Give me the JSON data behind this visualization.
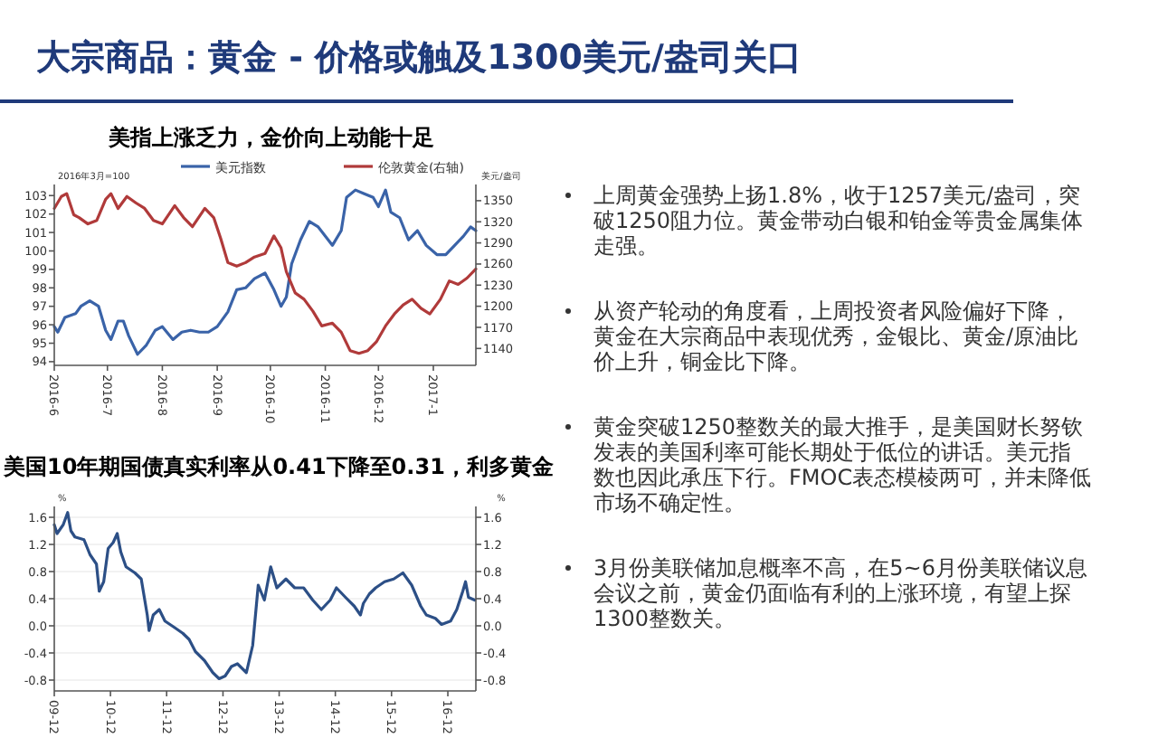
{
  "chart_data": [
    {
      "type": "line",
      "title": "美指上涨乏力，金价向上动能十足",
      "ylabel": "2016年3月=100",
      "y2label": "美元/盎司",
      "legend": "top",
      "xlim": [
        "2016-06-01",
        "2017-01-25"
      ],
      "ylim": [
        93.8,
        103.6
      ],
      "y2lim": [
        1116,
        1373
      ],
      "xticks": [
        {
          "value": "2016-06-01",
          "label": "2016-6"
        },
        {
          "value": "2016-07-01",
          "label": "2016-7"
        },
        {
          "value": "2016-08-01",
          "label": "2016-8"
        },
        {
          "value": "2016-09-01",
          "label": "2016-9"
        },
        {
          "value": "2016-10-01",
          "label": "2016-10"
        },
        {
          "value": "2016-11-01",
          "label": "2016-11"
        },
        {
          "value": "2016-12-01",
          "label": "2016-12"
        },
        {
          "value": "2017-01-01",
          "label": "2017-1"
        }
      ],
      "yticks": [
        94,
        95,
        96,
        97,
        98,
        99,
        100,
        101,
        102,
        103
      ],
      "y2ticks": [
        1140,
        1170,
        1200,
        1230,
        1260,
        1290,
        1320,
        1350
      ],
      "series": [
        {
          "name": "美元指数",
          "color": "#3a63a8",
          "x": [
            "2016-06-01",
            "2016-06-03",
            "2016-06-07",
            "2016-06-13",
            "2016-06-16",
            "2016-06-21",
            "2016-06-26",
            "2016-06-30",
            "2016-07-03",
            "2016-07-07",
            "2016-07-10",
            "2016-07-13",
            "2016-07-18",
            "2016-07-23",
            "2016-07-28",
            "2016-08-01",
            "2016-08-07",
            "2016-08-12",
            "2016-08-17",
            "2016-08-22",
            "2016-08-27",
            "2016-09-01",
            "2016-09-07",
            "2016-09-12",
            "2016-09-17",
            "2016-09-22",
            "2016-09-28",
            "2016-10-03",
            "2016-10-07",
            "2016-10-10",
            "2016-10-13",
            "2016-10-18",
            "2016-10-23",
            "2016-10-28",
            "2016-11-05",
            "2016-11-10",
            "2016-11-13",
            "2016-11-18",
            "2016-11-23",
            "2016-11-28",
            "2016-12-01",
            "2016-12-05",
            "2016-12-08",
            "2016-12-13",
            "2016-12-18",
            "2016-12-23",
            "2016-12-28",
            "2017-01-03",
            "2017-01-08",
            "2017-01-13",
            "2017-01-18",
            "2017-01-22",
            "2017-01-25"
          ],
          "values": [
            95.9,
            95.6,
            96.4,
            96.6,
            97.0,
            97.3,
            97.0,
            95.7,
            95.2,
            96.2,
            96.2,
            95.4,
            94.4,
            94.9,
            95.7,
            95.9,
            95.2,
            95.6,
            95.7,
            95.6,
            95.6,
            95.9,
            96.7,
            97.9,
            98.0,
            98.5,
            98.8,
            97.9,
            97.0,
            97.5,
            99.3,
            100.6,
            101.6,
            101.3,
            100.3,
            101.1,
            102.9,
            103.3,
            103.1,
            102.9,
            102.4,
            103.3,
            102.1,
            101.8,
            100.6,
            101.1,
            100.3,
            99.8,
            99.8,
            100.3,
            100.8,
            101.3,
            101.1
          ]
        },
        {
          "name": "伦敦黄金(右轴)",
          "color": "#b03a3a",
          "axis": "y2",
          "x": [
            "2016-06-01",
            "2016-06-05",
            "2016-06-08",
            "2016-06-12",
            "2016-06-15",
            "2016-06-20",
            "2016-06-25",
            "2016-06-30",
            "2016-07-03",
            "2016-07-07",
            "2016-07-12",
            "2016-07-17",
            "2016-07-22",
            "2016-07-27",
            "2016-08-01",
            "2016-08-08",
            "2016-08-13",
            "2016-08-18",
            "2016-08-25",
            "2016-08-30",
            "2016-09-03",
            "2016-09-07",
            "2016-09-12",
            "2016-09-17",
            "2016-09-22",
            "2016-09-28",
            "2016-10-03",
            "2016-10-07",
            "2016-10-10",
            "2016-10-15",
            "2016-10-20",
            "2016-10-25",
            "2016-10-30",
            "2016-11-05",
            "2016-11-10",
            "2016-11-15",
            "2016-11-20",
            "2016-11-25",
            "2016-11-30",
            "2016-12-05",
            "2016-12-10",
            "2016-12-15",
            "2016-12-20",
            "2016-12-25",
            "2016-12-30",
            "2017-01-05",
            "2017-01-10",
            "2017-01-15",
            "2017-01-20",
            "2017-01-25"
          ],
          "values": [
            1339,
            1356,
            1360,
            1330,
            1326,
            1317,
            1322,
            1352,
            1360,
            1339,
            1356,
            1347,
            1339,
            1322,
            1317,
            1343,
            1326,
            1313,
            1339,
            1326,
            1296,
            1262,
            1257,
            1262,
            1270,
            1275,
            1300,
            1283,
            1249,
            1219,
            1210,
            1193,
            1172,
            1176,
            1163,
            1137,
            1133,
            1137,
            1150,
            1172,
            1189,
            1202,
            1210,
            1197,
            1189,
            1210,
            1236,
            1231,
            1240,
            1253
          ]
        }
      ]
    },
    {
      "type": "line",
      "title": "美国10年期国债真实利率从0.41下降至0.31，利多黄金",
      "ylabel": "%",
      "y2label": "%",
      "grid": "y",
      "xlim": [
        "2009-12-01",
        "2017-06-01"
      ],
      "ylim": [
        -0.96,
        1.76
      ],
      "y2lim": [
        -0.96,
        1.76
      ],
      "xticks": [
        {
          "value": "2009-12-01",
          "label": "09-12"
        },
        {
          "value": "2010-12-01",
          "label": "10-12"
        },
        {
          "value": "2011-12-01",
          "label": "11-12"
        },
        {
          "value": "2012-12-01",
          "label": "12-12"
        },
        {
          "value": "2013-12-01",
          "label": "13-12"
        },
        {
          "value": "2014-12-01",
          "label": "14-12"
        },
        {
          "value": "2015-12-01",
          "label": "15-12"
        },
        {
          "value": "2016-12-01",
          "label": "16-12"
        }
      ],
      "yticks": [
        -0.8,
        -0.4,
        {
          "value": 0,
          "label": "0.0"
        },
        0.4,
        0.8,
        1.2,
        1.6
      ],
      "y2ticks": [
        -0.8,
        -0.4,
        {
          "value": 0,
          "label": "0.0"
        },
        0.4,
        0.8,
        1.2,
        1.6
      ],
      "series": [
        {
          "color": "#2c4f86",
          "x": [
            "2009-12-01",
            "2009-12-19",
            "2010-01-28",
            "2010-02-26",
            "2010-03-19",
            "2010-04-14",
            "2010-06-12",
            "2010-07-21",
            "2010-09-01",
            "2010-09-19",
            "2010-10-18",
            "2010-11-16",
            "2010-12-19",
            "2011-01-14",
            "2011-02-06",
            "2011-03-12",
            "2011-05-09",
            "2011-06-19",
            "2011-07-28",
            "2011-08-09",
            "2011-09-05",
            "2011-10-14",
            "2011-11-20",
            "2012-01-18",
            "2012-03-15",
            "2012-04-25",
            "2012-06-05",
            "2012-08-02",
            "2012-09-26",
            "2012-11-06",
            "2012-12-15",
            "2013-01-25",
            "2013-03-05",
            "2013-05-02",
            "2013-06-12",
            "2013-07-18",
            "2013-08-27",
            "2013-10-07",
            "2013-11-16",
            "2014-01-14",
            "2014-03-12",
            "2014-05-09",
            "2014-07-07",
            "2014-09-01",
            "2014-10-29",
            "2014-12-08",
            "2015-02-05",
            "2015-04-03",
            "2015-05-13",
            "2015-06-01",
            "2015-07-10",
            "2015-08-20",
            "2015-10-17",
            "2015-12-15",
            "2016-02-13",
            "2016-04-10",
            "2016-06-08",
            "2016-07-14",
            "2016-09-11",
            "2016-10-21",
            "2016-12-19",
            "2017-01-28",
            "2017-03-08",
            "2017-03-26",
            "2017-04-14",
            "2017-05-24"
          ],
          "values": [
            1.49,
            1.36,
            1.49,
            1.67,
            1.4,
            1.31,
            1.27,
            1.05,
            0.91,
            0.51,
            0.65,
            1.14,
            1.23,
            1.36,
            1.09,
            0.87,
            0.78,
            0.69,
            0.16,
            -0.07,
            0.16,
            0.24,
            0.07,
            -0.02,
            -0.11,
            -0.2,
            -0.38,
            -0.51,
            -0.69,
            -0.78,
            -0.74,
            -0.6,
            -0.56,
            -0.69,
            -0.29,
            0.6,
            0.38,
            0.87,
            0.56,
            0.69,
            0.56,
            0.56,
            0.38,
            0.24,
            0.38,
            0.56,
            0.42,
            0.29,
            0.16,
            0.33,
            0.47,
            0.56,
            0.65,
            0.69,
            0.78,
            0.6,
            0.29,
            0.16,
            0.11,
            0.02,
            0.07,
            0.24,
            0.51,
            0.65,
            0.42,
            0.38
          ]
        }
      ]
    },
    {
      "type": "other",
      "title": "大宗商品：黄金 - 价格或触及1300美元/盎司关口",
      "annotations": [
        "上周黄金强势上扬1.8%，收于1257美元/盎司，突破1250阻力位。黄金带动白银和铂金等贵金属集体走强。",
        "从资产轮动的角度看，上周投资者风险偏好下降，黄金在大宗商品中表现优秀，金银比、黄金/原油比价上升，铜金比下降。",
        "黄金突破1250整数关的最大推手，是美国财长努钦发表的美国利率可能长期处于低位的讲话。美元指数也因此承压下行。FMOC表态模棱两可，并未降低市场不确定性。",
        "3月份美联储加息概率不高，在5~6月份美联储议息会议之前，黄金仍面临有利的上涨环境，有望上探1300整数关。"
      ]
    }
  ]
}
